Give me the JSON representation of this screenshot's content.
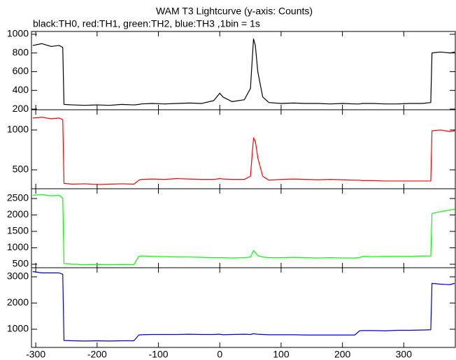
{
  "chart_data": {
    "type": "line",
    "title": "WAM T3 Lightcurve (y-axis: Counts)",
    "subtitle": "black:TH0, red:TH1, green:TH2, blue:TH3 ,1bin = 1s",
    "xlim": [
      -307,
      384
    ],
    "xticks": [
      -300,
      -200,
      -100,
      0,
      100,
      200,
      300
    ],
    "x": [
      -305,
      -290,
      -275,
      -262,
      -256,
      -254,
      -240,
      -220,
      -200,
      -180,
      -160,
      -140,
      -132,
      -128,
      -110,
      -90,
      -70,
      -50,
      -30,
      -10,
      0,
      5,
      20,
      40,
      50,
      55,
      58,
      62,
      70,
      80,
      100,
      120,
      140,
      160,
      180,
      200,
      220,
      228,
      232,
      250,
      270,
      290,
      310,
      330,
      344,
      346,
      360,
      375,
      383
    ],
    "panels": [
      {
        "ylim": [
          193,
          1030
        ],
        "yticks": [
          200,
          400,
          600,
          800,
          1000
        ],
        "series": [
          {
            "color": "#000000",
            "values": [
              880,
              900,
              870,
              880,
              860,
              250,
              245,
              240,
              245,
              240,
              250,
              245,
              250,
              255,
              260,
              255,
              260,
              265,
              260,
              290,
              370,
              330,
              280,
              300,
              420,
              950,
              880,
              600,
              330,
              270,
              260,
              265,
              260,
              260,
              255,
              260,
              255,
              255,
              260,
              260,
              255,
              255,
              260,
              260,
              270,
              800,
              810,
              800,
              810
            ]
          }
        ]
      },
      {
        "ylim": [
          263,
          1254
        ],
        "yticks": [
          500,
          1000
        ],
        "series": [
          {
            "color": "#ff0000",
            "values": [
              1150,
              1160,
              1140,
              1150,
              1130,
              330,
              320,
              325,
              315,
              320,
              325,
              320,
              370,
              380,
              385,
              380,
              390,
              385,
              380,
              380,
              390,
              385,
              380,
              380,
              420,
              900,
              860,
              650,
              420,
              370,
              380,
              385,
              380,
              375,
              380,
              375,
              370,
              370,
              365,
              365,
              360,
              360,
              360,
              360,
              360,
              990,
              1000,
              980,
              990
            ]
          }
        ]
      },
      {
        "ylim": [
          394,
          2798
        ],
        "yticks": [
          500,
          1000,
          1500,
          2000,
          2500
        ],
        "series": [
          {
            "color": "#00ff00",
            "values": [
              2600,
              2620,
              2580,
              2600,
              2500,
              520,
              500,
              490,
              495,
              490,
              495,
              490,
              740,
              750,
              740,
              730,
              720,
              720,
              710,
              700,
              700,
              700,
              690,
              700,
              720,
              920,
              850,
              760,
              720,
              700,
              700,
              710,
              700,
              690,
              700,
              690,
              690,
              700,
              740,
              730,
              740,
              740,
              740,
              750,
              750,
              2050,
              2100,
              2150,
              2180
            ]
          }
        ]
      },
      {
        "ylim": [
          307,
          3347
        ],
        "yticks": [
          1000,
          2000,
          3000
        ],
        "series": [
          {
            "color": "#0000cc",
            "values": [
              3200,
              3150,
              3150,
              3150,
              3100,
              570,
              560,
              550,
              560,
              550,
              560,
              560,
              780,
              790,
              800,
              800,
              800,
              810,
              800,
              800,
              810,
              790,
              800,
              810,
              800,
              830,
              820,
              810,
              800,
              790,
              790,
              790,
              780,
              780,
              780,
              780,
              780,
              940,
              950,
              950,
              940,
              960,
              960,
              970,
              980,
              2750,
              2720,
              2700,
              2750
            ]
          }
        ]
      }
    ]
  }
}
